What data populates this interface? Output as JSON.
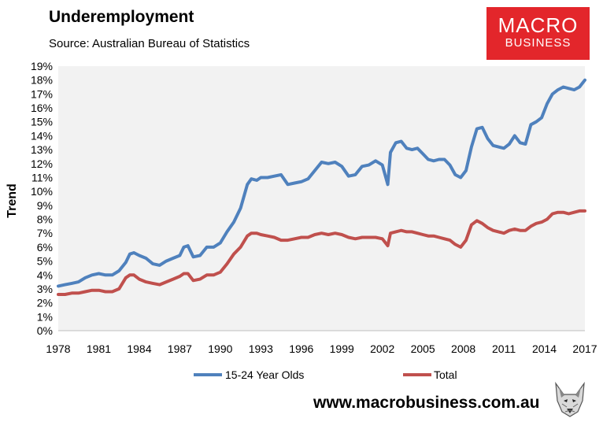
{
  "header": {
    "title": "Underemployment",
    "subtitle": "Source: Australian Bureau of Statistics"
  },
  "logo": {
    "line1": "MACRO",
    "line2": "BUSINESS",
    "color": "#e3262b"
  },
  "footer": {
    "website": "www.macrobusiness.com.au",
    "icon": "wolf-head-icon"
  },
  "chart_data": {
    "type": "line",
    "title": "Underemployment",
    "xlabel": "",
    "ylabel": "Trend",
    "xlim": [
      1978,
      2017
    ],
    "ylim": [
      0,
      19
    ],
    "x_ticks": [
      "1978",
      "1981",
      "1984",
      "1987",
      "1990",
      "1993",
      "1996",
      "1999",
      "2002",
      "2005",
      "2008",
      "2011",
      "2014",
      "2017"
    ],
    "y_ticks": [
      "0%",
      "1%",
      "2%",
      "3%",
      "4%",
      "5%",
      "6%",
      "7%",
      "8%",
      "9%",
      "10%",
      "11%",
      "12%",
      "13%",
      "14%",
      "15%",
      "16%",
      "17%",
      "18%",
      "19%"
    ],
    "grid": false,
    "legend": "bottom",
    "plot_background": "#f2f2f2",
    "series": [
      {
        "name": "15-24 Year Olds",
        "color": "#4f81bd",
        "points": [
          [
            1978.0,
            3.2
          ],
          [
            1978.5,
            3.3
          ],
          [
            1979.0,
            3.4
          ],
          [
            1979.5,
            3.5
          ],
          [
            1980.0,
            3.8
          ],
          [
            1980.5,
            4.0
          ],
          [
            1981.0,
            4.1
          ],
          [
            1981.5,
            4.0
          ],
          [
            1982.0,
            4.0
          ],
          [
            1982.5,
            4.3
          ],
          [
            1983.0,
            4.9
          ],
          [
            1983.3,
            5.5
          ],
          [
            1983.6,
            5.6
          ],
          [
            1984.0,
            5.4
          ],
          [
            1984.5,
            5.2
          ],
          [
            1985.0,
            4.8
          ],
          [
            1985.5,
            4.7
          ],
          [
            1986.0,
            5.0
          ],
          [
            1986.5,
            5.2
          ],
          [
            1987.0,
            5.4
          ],
          [
            1987.3,
            6.0
          ],
          [
            1987.6,
            6.1
          ],
          [
            1988.0,
            5.3
          ],
          [
            1988.5,
            5.4
          ],
          [
            1989.0,
            6.0
          ],
          [
            1989.5,
            6.0
          ],
          [
            1990.0,
            6.3
          ],
          [
            1990.5,
            7.1
          ],
          [
            1991.0,
            7.8
          ],
          [
            1991.5,
            8.8
          ],
          [
            1992.0,
            10.5
          ],
          [
            1992.3,
            10.9
          ],
          [
            1992.7,
            10.8
          ],
          [
            1993.0,
            11.0
          ],
          [
            1993.5,
            11.0
          ],
          [
            1994.0,
            11.1
          ],
          [
            1994.5,
            11.2
          ],
          [
            1995.0,
            10.5
          ],
          [
            1995.5,
            10.6
          ],
          [
            1996.0,
            10.7
          ],
          [
            1996.5,
            10.9
          ],
          [
            1997.0,
            11.5
          ],
          [
            1997.5,
            12.1
          ],
          [
            1998.0,
            12.0
          ],
          [
            1998.5,
            12.1
          ],
          [
            1999.0,
            11.8
          ],
          [
            1999.5,
            11.1
          ],
          [
            2000.0,
            11.2
          ],
          [
            2000.5,
            11.8
          ],
          [
            2001.0,
            11.9
          ],
          [
            2001.5,
            12.2
          ],
          [
            2002.0,
            11.9
          ],
          [
            2002.4,
            10.5
          ],
          [
            2002.6,
            12.8
          ],
          [
            2003.0,
            13.5
          ],
          [
            2003.4,
            13.6
          ],
          [
            2003.8,
            13.1
          ],
          [
            2004.2,
            13.0
          ],
          [
            2004.6,
            13.1
          ],
          [
            2005.0,
            12.7
          ],
          [
            2005.4,
            12.3
          ],
          [
            2005.8,
            12.2
          ],
          [
            2006.2,
            12.3
          ],
          [
            2006.6,
            12.3
          ],
          [
            2007.0,
            11.9
          ],
          [
            2007.4,
            11.2
          ],
          [
            2007.8,
            11.0
          ],
          [
            2008.2,
            11.5
          ],
          [
            2008.6,
            13.2
          ],
          [
            2009.0,
            14.5
          ],
          [
            2009.4,
            14.6
          ],
          [
            2009.8,
            13.8
          ],
          [
            2010.2,
            13.3
          ],
          [
            2010.6,
            13.2
          ],
          [
            2011.0,
            13.1
          ],
          [
            2011.4,
            13.4
          ],
          [
            2011.8,
            14.0
          ],
          [
            2012.2,
            13.5
          ],
          [
            2012.6,
            13.4
          ],
          [
            2013.0,
            14.8
          ],
          [
            2013.4,
            15.0
          ],
          [
            2013.8,
            15.3
          ],
          [
            2014.2,
            16.3
          ],
          [
            2014.6,
            17.0
          ],
          [
            2015.0,
            17.3
          ],
          [
            2015.4,
            17.5
          ],
          [
            2015.8,
            17.4
          ],
          [
            2016.2,
            17.3
          ],
          [
            2016.6,
            17.5
          ],
          [
            2017.0,
            18.0
          ]
        ]
      },
      {
        "name": "Total",
        "color": "#c0504d",
        "points": [
          [
            1978.0,
            2.6
          ],
          [
            1978.5,
            2.6
          ],
          [
            1979.0,
            2.7
          ],
          [
            1979.5,
            2.7
          ],
          [
            1980.0,
            2.8
          ],
          [
            1980.5,
            2.9
          ],
          [
            1981.0,
            2.9
          ],
          [
            1981.5,
            2.8
          ],
          [
            1982.0,
            2.8
          ],
          [
            1982.5,
            3.0
          ],
          [
            1983.0,
            3.8
          ],
          [
            1983.3,
            4.0
          ],
          [
            1983.6,
            4.0
          ],
          [
            1984.0,
            3.7
          ],
          [
            1984.5,
            3.5
          ],
          [
            1985.0,
            3.4
          ],
          [
            1985.5,
            3.3
          ],
          [
            1986.0,
            3.5
          ],
          [
            1986.5,
            3.7
          ],
          [
            1987.0,
            3.9
          ],
          [
            1987.3,
            4.1
          ],
          [
            1987.6,
            4.1
          ],
          [
            1988.0,
            3.6
          ],
          [
            1988.5,
            3.7
          ],
          [
            1989.0,
            4.0
          ],
          [
            1989.5,
            4.0
          ],
          [
            1990.0,
            4.2
          ],
          [
            1990.5,
            4.8
          ],
          [
            1991.0,
            5.5
          ],
          [
            1991.5,
            6.0
          ],
          [
            1992.0,
            6.8
          ],
          [
            1992.3,
            7.0
          ],
          [
            1992.7,
            7.0
          ],
          [
            1993.0,
            6.9
          ],
          [
            1993.5,
            6.8
          ],
          [
            1994.0,
            6.7
          ],
          [
            1994.5,
            6.5
          ],
          [
            1995.0,
            6.5
          ],
          [
            1995.5,
            6.6
          ],
          [
            1996.0,
            6.7
          ],
          [
            1996.5,
            6.7
          ],
          [
            1997.0,
            6.9
          ],
          [
            1997.5,
            7.0
          ],
          [
            1998.0,
            6.9
          ],
          [
            1998.5,
            7.0
          ],
          [
            1999.0,
            6.9
          ],
          [
            1999.5,
            6.7
          ],
          [
            2000.0,
            6.6
          ],
          [
            2000.5,
            6.7
          ],
          [
            2001.0,
            6.7
          ],
          [
            2001.5,
            6.7
          ],
          [
            2002.0,
            6.6
          ],
          [
            2002.4,
            6.1
          ],
          [
            2002.6,
            7.0
          ],
          [
            2003.0,
            7.1
          ],
          [
            2003.4,
            7.2
          ],
          [
            2003.8,
            7.1
          ],
          [
            2004.2,
            7.1
          ],
          [
            2004.6,
            7.0
          ],
          [
            2005.0,
            6.9
          ],
          [
            2005.4,
            6.8
          ],
          [
            2005.8,
            6.8
          ],
          [
            2006.2,
            6.7
          ],
          [
            2006.6,
            6.6
          ],
          [
            2007.0,
            6.5
          ],
          [
            2007.4,
            6.2
          ],
          [
            2007.8,
            6.0
          ],
          [
            2008.2,
            6.5
          ],
          [
            2008.6,
            7.6
          ],
          [
            2009.0,
            7.9
          ],
          [
            2009.4,
            7.7
          ],
          [
            2009.8,
            7.4
          ],
          [
            2010.2,
            7.2
          ],
          [
            2010.6,
            7.1
          ],
          [
            2011.0,
            7.0
          ],
          [
            2011.4,
            7.2
          ],
          [
            2011.8,
            7.3
          ],
          [
            2012.2,
            7.2
          ],
          [
            2012.6,
            7.2
          ],
          [
            2013.0,
            7.5
          ],
          [
            2013.4,
            7.7
          ],
          [
            2013.8,
            7.8
          ],
          [
            2014.2,
            8.0
          ],
          [
            2014.6,
            8.4
          ],
          [
            2015.0,
            8.5
          ],
          [
            2015.4,
            8.5
          ],
          [
            2015.8,
            8.4
          ],
          [
            2016.2,
            8.5
          ],
          [
            2016.6,
            8.6
          ],
          [
            2017.0,
            8.6
          ]
        ]
      }
    ]
  }
}
